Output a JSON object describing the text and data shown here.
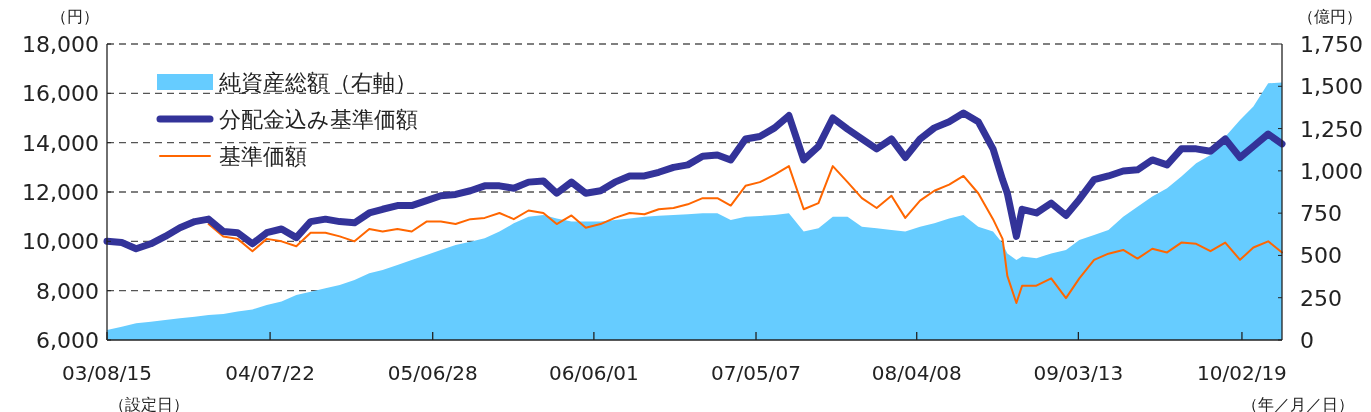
{
  "chart_data": {
    "type": "line",
    "x": [
      "2003-08-15",
      "2003-09-15",
      "2003-10-15",
      "2003-11-15",
      "2003-12-15",
      "2004-01-15",
      "2004-02-15",
      "2004-03-15",
      "2004-04-15",
      "2004-05-15",
      "2004-06-15",
      "2004-07-15",
      "2004-08-15",
      "2004-09-15",
      "2004-10-15",
      "2004-11-15",
      "2004-12-15",
      "2005-01-15",
      "2005-02-15",
      "2005-03-15",
      "2005-04-15",
      "2005-05-15",
      "2005-06-15",
      "2005-07-15",
      "2005-08-15",
      "2005-09-15",
      "2005-10-15",
      "2005-11-15",
      "2005-12-15",
      "2006-01-15",
      "2006-02-15",
      "2006-03-15",
      "2006-04-15",
      "2006-05-15",
      "2006-06-15",
      "2006-07-15",
      "2006-08-15",
      "2006-09-15",
      "2006-10-15",
      "2006-11-15",
      "2006-12-15",
      "2007-01-15",
      "2007-02-15",
      "2007-03-15",
      "2007-04-15",
      "2007-05-15",
      "2007-06-15",
      "2007-07-15",
      "2007-08-15",
      "2007-09-15",
      "2007-10-15",
      "2007-11-15",
      "2007-12-15",
      "2008-01-15",
      "2008-02-15",
      "2008-03-15",
      "2008-04-15",
      "2008-05-15",
      "2008-06-15",
      "2008-07-15",
      "2008-08-15",
      "2008-09-15",
      "2008-10-05",
      "2008-10-15",
      "2008-11-03",
      "2008-11-15",
      "2008-12-15",
      "2009-01-15",
      "2009-02-15",
      "2009-03-15",
      "2009-04-15",
      "2009-05-15",
      "2009-06-15",
      "2009-07-15",
      "2009-08-15",
      "2009-09-15",
      "2009-10-15",
      "2009-11-15",
      "2009-12-15",
      "2010-01-15",
      "2010-02-15",
      "2010-03-15",
      "2010-04-15",
      "2010-05-14"
    ],
    "series": [
      {
        "name": "純資産総額（右軸）",
        "type": "area",
        "axis": "y2",
        "color": "#66ccff",
        "values": [
          59,
          79,
          99,
          108,
          118,
          128,
          138,
          148,
          154,
          168,
          181,
          207,
          227,
          266,
          286,
          306,
          325,
          355,
          394,
          414,
          443,
          473,
          503,
          532,
          562,
          581,
          601,
          641,
          690,
          729,
          739,
          719,
          700,
          700,
          700,
          710,
          719,
          729,
          735,
          739,
          743,
          749,
          749,
          710,
          729,
          733,
          739,
          749,
          641,
          660,
          729,
          729,
          670,
          660,
          650,
          641,
          670,
          690,
          719,
          739,
          670,
          641,
          572,
          512,
          473,
          493,
          483,
          512,
          532,
          591,
          621,
          650,
          729,
          788,
          848,
          897,
          966,
          1045,
          1094,
          1202,
          1301,
          1380,
          1518,
          1522
        ]
      },
      {
        "name": "分配金込み基準価額",
        "color": "#333399",
        "values": [
          10000,
          9950,
          9700,
          9900,
          10200,
          10550,
          10800,
          10900,
          10400,
          10350,
          9900,
          10350,
          10500,
          10150,
          10800,
          10900,
          10800,
          10750,
          11150,
          11300,
          11450,
          11450,
          11650,
          11850,
          11900,
          12050,
          12250,
          12250,
          12150,
          12400,
          12450,
          11950,
          12400,
          11950,
          12050,
          12400,
          12650,
          12650,
          12800,
          13000,
          13100,
          13450,
          13500,
          13300,
          14150,
          14250,
          14600,
          15100,
          13300,
          13850,
          15000,
          14550,
          14150,
          13750,
          14150,
          13400,
          14150,
          14600,
          14850,
          15200,
          14850,
          13750,
          12500,
          11950,
          10200,
          11300,
          11150,
          11550,
          11050,
          11700,
          12500,
          12650,
          12850,
          12900,
          13300,
          13100,
          13750,
          13750,
          13650,
          14150,
          13400,
          13850,
          14350,
          13950
        ]
      },
      {
        "name": "基準価額",
        "color": "#ff6600",
        "values": [
          null,
          null,
          null,
          null,
          null,
          null,
          null,
          10700,
          10200,
          10100,
          9600,
          10100,
          10000,
          9800,
          10350,
          10350,
          10200,
          10000,
          10500,
          10400,
          10500,
          10400,
          10800,
          10800,
          10700,
          10900,
          10950,
          11150,
          10900,
          11250,
          11150,
          10700,
          11050,
          10550,
          10700,
          10950,
          11150,
          11100,
          11300,
          11350,
          11500,
          11750,
          11750,
          11450,
          12250,
          12400,
          12700,
          13050,
          11300,
          11550,
          13050,
          12400,
          11750,
          11350,
          11850,
          10950,
          11650,
          12050,
          12300,
          12650,
          11950,
          10900,
          10100,
          8600,
          7500,
          8200,
          8200,
          8500,
          7700,
          8500,
          9250,
          9500,
          9650,
          9300,
          9700,
          9550,
          9950,
          9900,
          9600,
          9950,
          9250,
          9750,
          10000,
          9550
        ]
      }
    ],
    "xlim": [
      "2003-08-15",
      "2010-05-14"
    ],
    "xticks": [
      {
        "value": "2003-08-15",
        "label": "03/08/15"
      },
      {
        "value": "2004-07-22",
        "label": "04/07/22"
      },
      {
        "value": "2005-06-28",
        "label": "05/06/28"
      },
      {
        "value": "2006-06-01",
        "label": "06/06/01"
      },
      {
        "value": "2007-05-07",
        "label": "07/05/07"
      },
      {
        "value": "2008-04-08",
        "label": "08/04/08"
      },
      {
        "value": "2009-03-13",
        "label": "09/03/13"
      },
      {
        "value": "2010-02-19",
        "label": "10/02/19"
      }
    ],
    "ylim": [
      6000,
      18000
    ],
    "yticks": [
      {
        "value": 6000,
        "label": "6,000"
      },
      {
        "value": 8000,
        "label": "8,000"
      },
      {
        "value": 10000,
        "label": "10,000"
      },
      {
        "value": 12000,
        "label": "12,000"
      },
      {
        "value": 14000,
        "label": "14,000"
      },
      {
        "value": 16000,
        "label": "16,000"
      },
      {
        "value": 18000,
        "label": "18,000"
      }
    ],
    "y2lim": [
      0,
      1750
    ],
    "y2ticks": [
      0,
      250,
      500,
      750,
      {
        "value": 1000,
        "label": "1,000"
      },
      {
        "value": 1250,
        "label": "1,250"
      },
      {
        "value": 1500,
        "label": "1,500"
      },
      {
        "value": 1750,
        "label": "1,750"
      }
    ],
    "grid": "y",
    "legend": "top left",
    "annotations": [
      "（円）",
      "（億円）",
      "（設定日）",
      "（年／月／日）"
    ]
  }
}
